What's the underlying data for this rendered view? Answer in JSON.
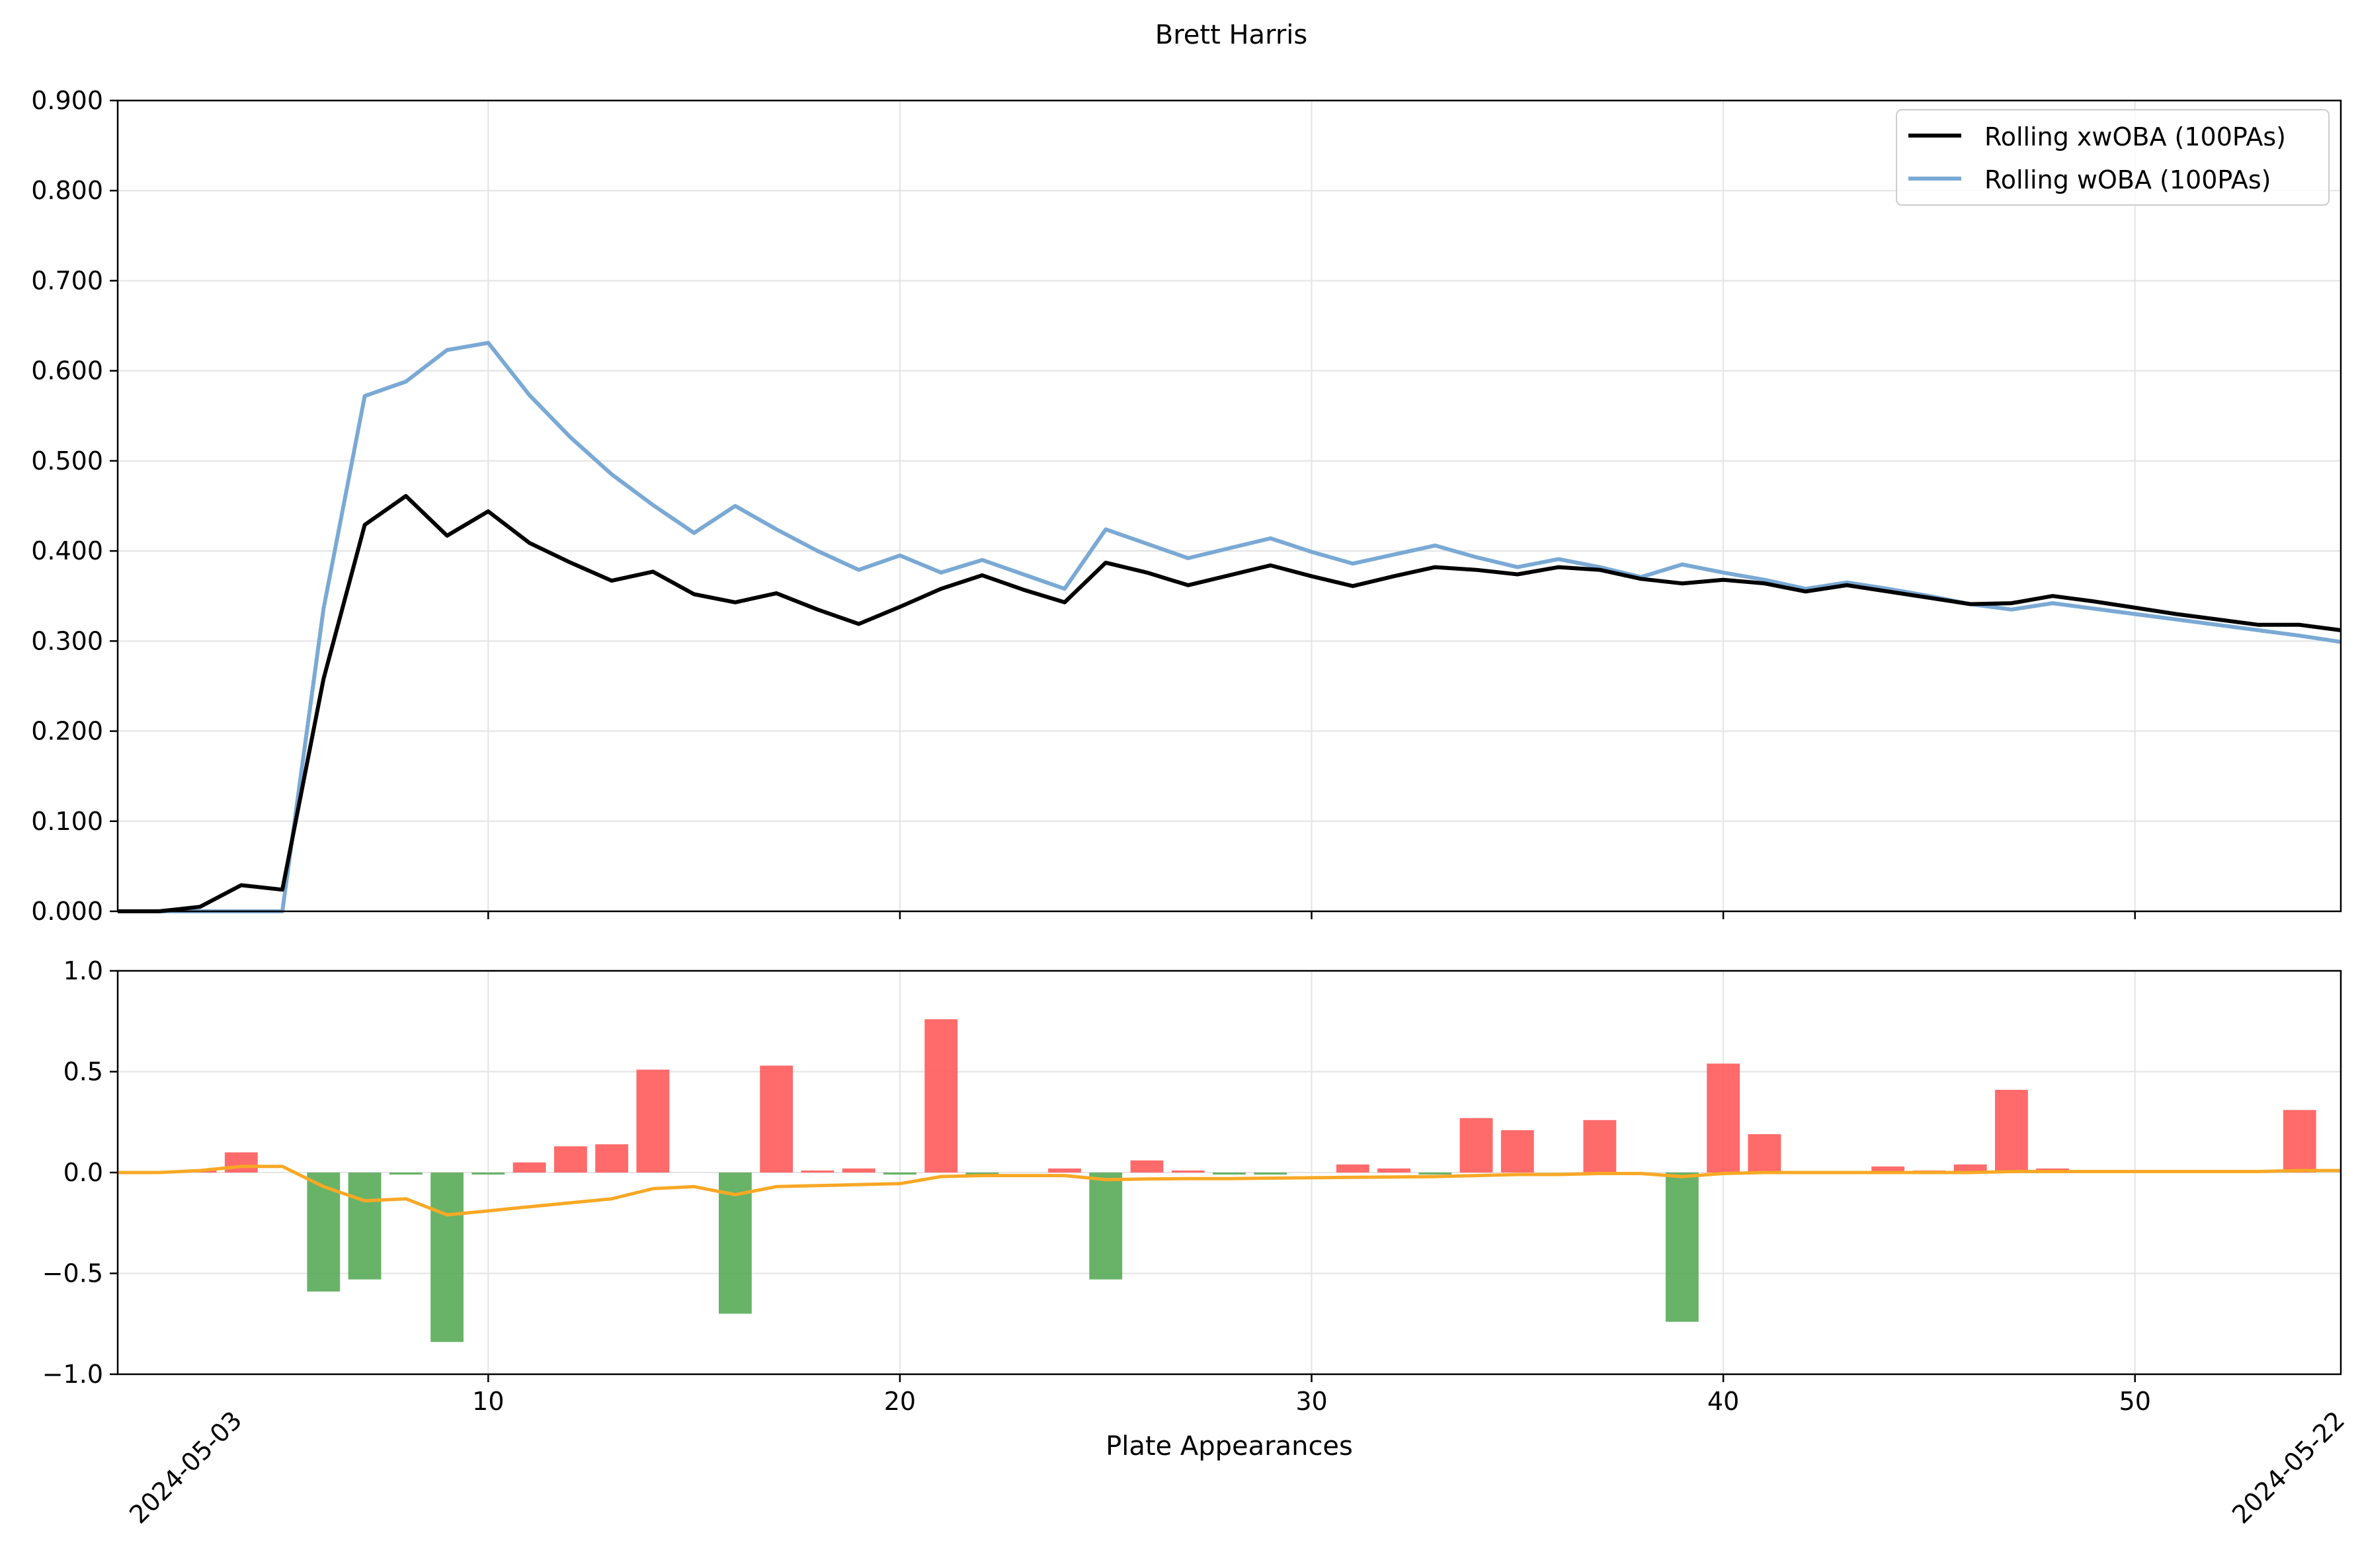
{
  "title": "Brett Harris",
  "chart_data": [
    {
      "type": "line",
      "title": "Brett Harris",
      "xlabel": "",
      "ylabel": "",
      "xlim": [
        1,
        55
      ],
      "ylim": [
        0,
        0.9
      ],
      "y_ticks": [
        "0.000",
        "0.100",
        "0.200",
        "0.300",
        "0.400",
        "0.500",
        "0.600",
        "0.700",
        "0.800",
        "0.900"
      ],
      "grid": true,
      "legend_position": "top-right",
      "x": [
        1,
        2,
        3,
        4,
        5,
        6,
        7,
        8,
        9,
        10,
        11,
        12,
        13,
        14,
        15,
        16,
        17,
        18,
        19,
        20,
        21,
        22,
        23,
        24,
        25,
        26,
        27,
        28,
        29,
        30,
        31,
        32,
        33,
        34,
        35,
        36,
        37,
        38,
        39,
        40,
        41,
        42,
        43,
        44,
        45,
        46,
        47,
        48,
        49,
        50,
        51,
        52,
        53,
        54,
        55
      ],
      "series": [
        {
          "name": "Rolling xwOBA (100PAs)",
          "color": "#000000",
          "values": [
            0.0,
            0.0,
            0.005,
            0.029,
            0.024,
            0.258,
            0.429,
            0.461,
            0.417,
            0.444,
            0.409,
            0.387,
            0.367,
            0.377,
            0.352,
            0.343,
            0.353,
            0.335,
            0.319,
            0.338,
            0.358,
            0.373,
            0.357,
            0.343,
            0.387,
            0.376,
            0.362,
            0.373,
            0.384,
            0.372,
            0.361,
            0.372,
            0.382,
            0.379,
            0.374,
            0.382,
            0.379,
            0.369,
            0.364,
            0.368,
            0.364,
            0.355,
            0.362,
            0.355,
            0.348,
            0.341,
            0.342,
            0.35,
            0.344,
            0.337,
            0.33,
            0.324,
            0.318,
            0.318,
            0.312
          ]
        },
        {
          "name": "Rolling wOBA (100PAs)",
          "color": "#7aa9d4",
          "values": [
            0.0,
            0.0,
            0.0,
            0.0,
            0.0,
            0.336,
            0.572,
            0.588,
            0.623,
            0.631,
            0.573,
            0.526,
            0.485,
            0.451,
            0.42,
            0.45,
            0.424,
            0.4,
            0.379,
            0.395,
            0.376,
            0.39,
            0.374,
            0.358,
            0.424,
            0.408,
            0.392,
            0.403,
            0.414,
            0.399,
            0.386,
            0.396,
            0.406,
            0.393,
            0.382,
            0.391,
            0.382,
            0.371,
            0.385,
            0.376,
            0.368,
            0.358,
            0.365,
            0.358,
            0.35,
            0.341,
            0.335,
            0.342,
            0.336,
            0.33,
            0.324,
            0.318,
            0.312,
            0.306,
            0.299
          ]
        }
      ]
    },
    {
      "type": "bar",
      "title": "",
      "xlabel": "Plate Appearances",
      "ylabel": "",
      "xlim": [
        1,
        55
      ],
      "ylim": [
        -1.0,
        1.0
      ],
      "x_ticks": [
        "10",
        "20",
        "30",
        "40",
        "50"
      ],
      "y_ticks": [
        "1.0",
        "0.5",
        "0.0",
        "−0.5",
        "−1.0"
      ],
      "date_labels": [
        "2024-05-03",
        "2024-05-22"
      ],
      "grid": true,
      "colors": {
        "positive": "#ff5a5a",
        "negative": "#4ea64e",
        "trend": "#f8a825"
      },
      "x": [
        1,
        2,
        3,
        4,
        5,
        6,
        7,
        8,
        9,
        10,
        11,
        12,
        13,
        14,
        15,
        16,
        17,
        18,
        19,
        20,
        21,
        22,
        23,
        24,
        25,
        26,
        27,
        28,
        29,
        30,
        31,
        32,
        33,
        34,
        35,
        36,
        37,
        38,
        39,
        40,
        41,
        42,
        43,
        44,
        45,
        46,
        47,
        48,
        49,
        50,
        51,
        52,
        53,
        54,
        55
      ],
      "values": [
        0,
        0,
        0.01,
        0.1,
        0,
        -0.59,
        -0.53,
        -0.01,
        -0.84,
        -0.01,
        0.05,
        0.13,
        0.14,
        0.51,
        0,
        -0.7,
        0.53,
        0.01,
        0.02,
        -0.01,
        0.76,
        -0.01,
        0,
        0.02,
        -0.53,
        0.06,
        0.01,
        -0.01,
        -0.01,
        0,
        0.04,
        0.02,
        -0.01,
        0.27,
        0.21,
        0,
        0.26,
        0,
        -0.74,
        0.54,
        0.19,
        0,
        0,
        0.03,
        0.01,
        0.04,
        0.41,
        0.02,
        0,
        0,
        0,
        0,
        0,
        0.31,
        0
      ],
      "trend": [
        0,
        0,
        0.01,
        0.03,
        0.03,
        -0.07,
        -0.14,
        -0.13,
        -0.21,
        -0.19,
        -0.17,
        -0.15,
        -0.13,
        -0.08,
        -0.07,
        -0.11,
        -0.07,
        -0.065,
        -0.06,
        -0.055,
        -0.02,
        -0.015,
        -0.015,
        -0.015,
        -0.035,
        -0.032,
        -0.03,
        -0.03,
        -0.028,
        -0.026,
        -0.024,
        -0.022,
        -0.02,
        -0.015,
        -0.01,
        -0.01,
        -0.005,
        -0.005,
        -0.02,
        -0.005,
        0,
        0,
        0,
        0,
        0,
        0,
        0.005,
        0.005,
        0.005,
        0.005,
        0.005,
        0.005,
        0.005,
        0.01,
        0.01
      ]
    }
  ]
}
